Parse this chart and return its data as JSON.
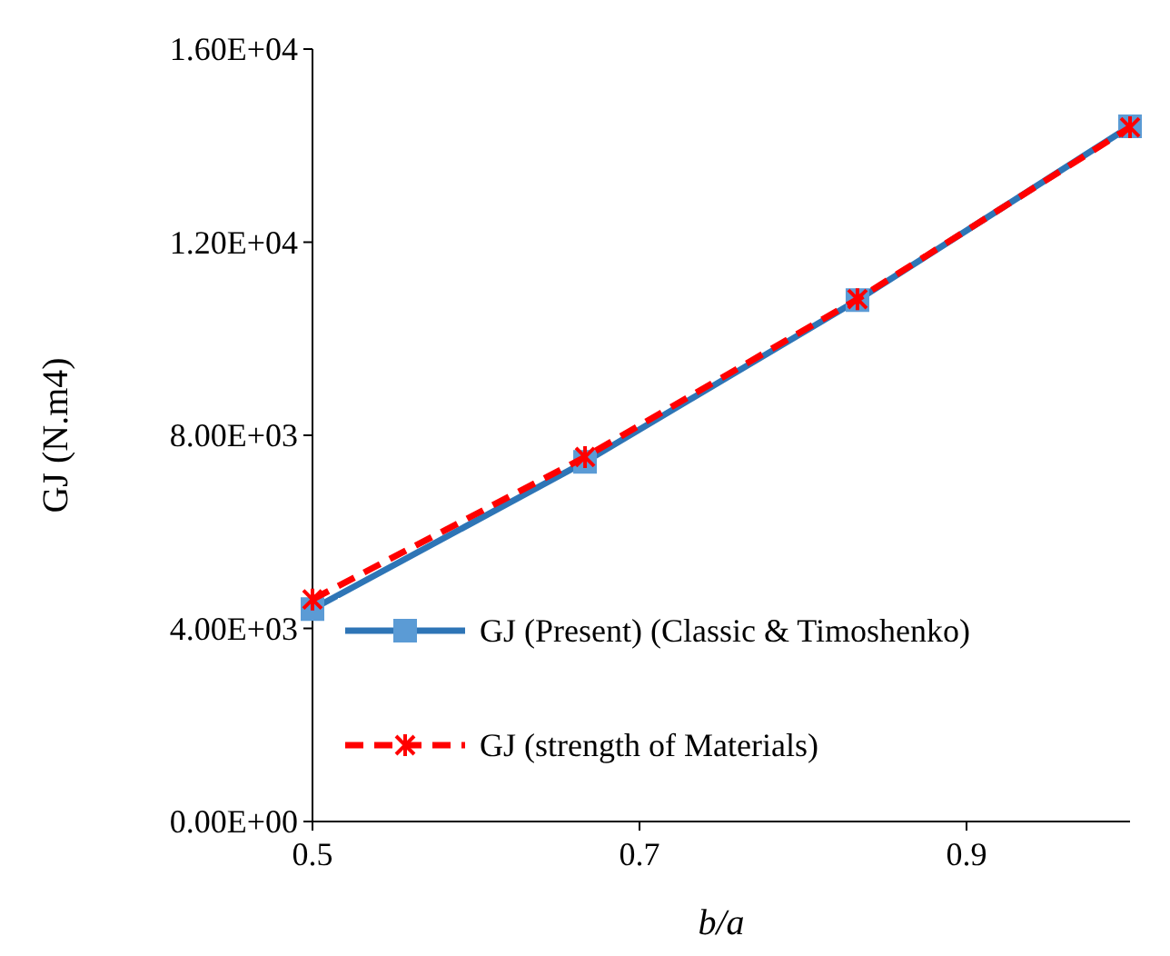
{
  "chart_data": {
    "type": "line",
    "xlabel": "b/a",
    "ylabel": "GJ (N.m4)",
    "xlim": [
      0.5,
      1.0
    ],
    "xticks": [
      0.5,
      0.7,
      0.9
    ],
    "ylim": [
      0,
      16000
    ],
    "yticks": [
      {
        "value": 0,
        "label": "0.00E+00"
      },
      {
        "value": 4000,
        "label": "4.00E+03"
      },
      {
        "value": 8000,
        "label": "8.00E+03"
      },
      {
        "value": 12000,
        "label": "1.20E+04"
      },
      {
        "value": 16000,
        "label": "1.60E+04"
      }
    ],
    "grid": false,
    "legend": "bottom",
    "x": [
      0.5,
      0.6667,
      0.8333,
      1.0
    ],
    "series": [
      {
        "name": "GJ (Present) (Classic & Timoshenko)",
        "color": "#2e75b6",
        "marker": "square",
        "line_style": "solid",
        "values": [
          4400,
          7450,
          10800,
          14400
        ]
      },
      {
        "name": "GJ (strength of Materials)",
        "color": "#ff0000",
        "marker": "cross",
        "line_style": "dashed",
        "values": [
          4600,
          7550,
          10820,
          14380
        ]
      }
    ]
  }
}
